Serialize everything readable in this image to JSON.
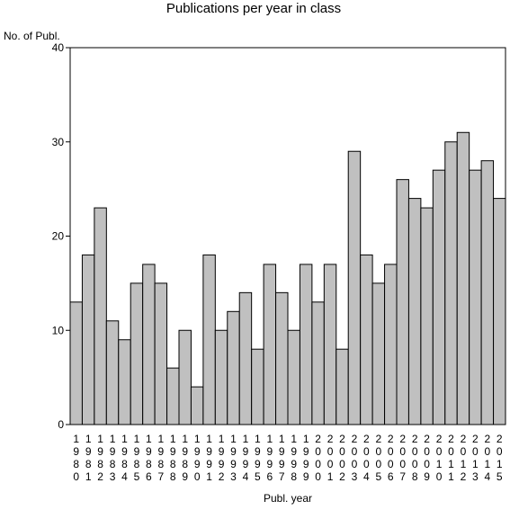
{
  "chart_data": {
    "type": "bar",
    "title": "Publications per year in class",
    "xlabel": "Publ. year",
    "ylabel": "No. of Publ.",
    "ylim": [
      0,
      40
    ],
    "yticks": [
      "0",
      "10",
      "20",
      "30",
      "40"
    ],
    "grid": false,
    "bar_color": "#c0c0c0",
    "categories": [
      "1980",
      "1981",
      "1982",
      "1983",
      "1984",
      "1985",
      "1986",
      "1987",
      "1988",
      "1989",
      "1990",
      "1991",
      "1992",
      "1993",
      "1994",
      "1995",
      "1996",
      "1997",
      "1998",
      "1999",
      "2000",
      "2001",
      "2002",
      "2003",
      "2004",
      "2005",
      "2006",
      "2007",
      "2008",
      "2009",
      "2010",
      "2011",
      "2012",
      "2013",
      "2014",
      "2015"
    ],
    "values": [
      13,
      18,
      23,
      11,
      9,
      15,
      17,
      15,
      6,
      10,
      4,
      18,
      10,
      12,
      14,
      8,
      17,
      14,
      10,
      17,
      13,
      17,
      8,
      29,
      18,
      15,
      17,
      26,
      24,
      23,
      27,
      30,
      31,
      27,
      28,
      24
    ]
  }
}
